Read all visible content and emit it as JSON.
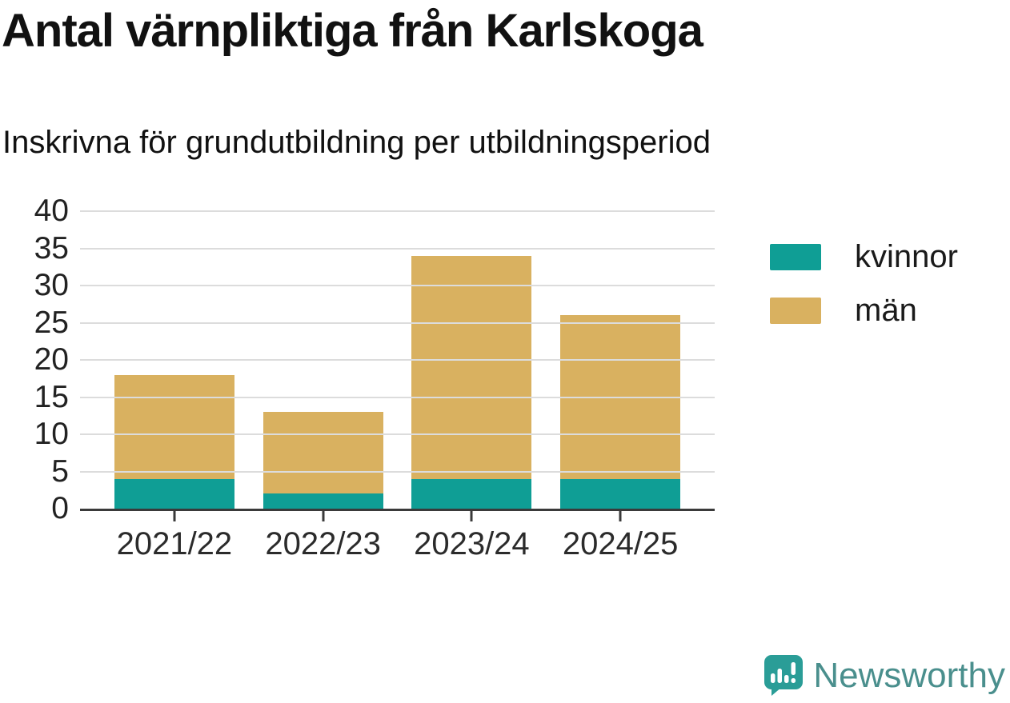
{
  "header": {
    "title": "Antal värnpliktiga från Karlskoga",
    "subtitle": "Inskrivna för grundutbildning per utbildningsperiod"
  },
  "chart_data": {
    "type": "bar",
    "stacked": true,
    "title": "Antal värnpliktiga från Karlskoga",
    "subtitle": "Inskrivna för grundutbildning per utbildningsperiod",
    "categories": [
      "2021/22",
      "2022/23",
      "2023/24",
      "2024/25"
    ],
    "series": [
      {
        "name": "kvinnor",
        "color": "#0f9e95",
        "values": [
          4,
          2,
          4,
          4
        ]
      },
      {
        "name": "män",
        "color": "#d9b160",
        "values": [
          14,
          11,
          30,
          22
        ]
      }
    ],
    "totals": [
      18,
      13,
      34,
      26
    ],
    "xlabel": "",
    "ylabel": "",
    "ylim": [
      0,
      40
    ],
    "yticks": [
      0,
      5,
      10,
      15,
      20,
      25,
      30,
      35,
      40
    ],
    "grid": true,
    "legend_position": "right",
    "colors": {
      "axis": "#3a3a3a",
      "gridline": "#dcdcdc"
    }
  },
  "branding": {
    "name": "Newsworthy",
    "icon_color": "#2a9d97",
    "text_color": "#4a8f8d"
  }
}
